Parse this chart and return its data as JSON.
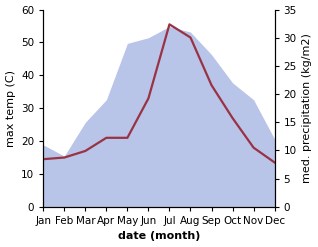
{
  "months": [
    "Jan",
    "Feb",
    "Mar",
    "Apr",
    "May",
    "Jun",
    "Jul",
    "Aug",
    "Sep",
    "Oct",
    "Nov",
    "Dec"
  ],
  "temp_C": [
    14.5,
    15.0,
    17.0,
    21.0,
    21.0,
    33.0,
    55.5,
    51.5,
    37.0,
    27.0,
    18.0,
    13.5
  ],
  "precip_kg": [
    11,
    9,
    15,
    19,
    29,
    30,
    32,
    31,
    27,
    22,
    19,
    12
  ],
  "temp_color": "#993344",
  "precip_fill_color": "#b8c4e8",
  "left_ylabel": "max temp (C)",
  "right_ylabel": "med. precipitation (kg/m2)",
  "xlabel": "date (month)",
  "ylim_left": [
    0,
    60
  ],
  "ylim_right": [
    0,
    35
  ],
  "yticks_left": [
    0,
    10,
    20,
    30,
    40,
    50,
    60
  ],
  "yticks_right": [
    0,
    5,
    10,
    15,
    20,
    25,
    30,
    35
  ],
  "bg_color": "#ffffff",
  "line_width": 1.6,
  "label_fontsize": 8,
  "tick_fontsize": 7.5
}
